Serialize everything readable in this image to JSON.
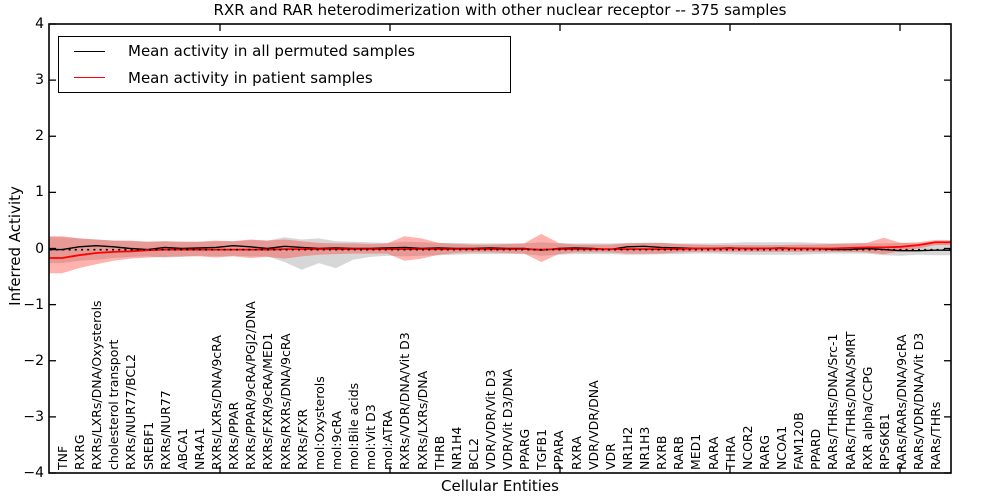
{
  "title": "RXR and RAR heterodimerization with other nuclear receptor -- 375 samples",
  "axes": {
    "ylabel": "Inferred Activity",
    "xlabel": "Cellular Entities",
    "y_tick_labels": [
      "4",
      "3",
      "2",
      "1",
      "0",
      "−1",
      "−2",
      "−3",
      "−4"
    ],
    "y_tick_values": [
      4,
      3,
      2,
      1,
      0,
      -1,
      -2,
      -3,
      -4
    ]
  },
  "legend": {
    "items": [
      {
        "label": "Mean activity in all permuted samples",
        "color": "#000000"
      },
      {
        "label": "Mean activity in patient samples",
        "color": "#ff0000"
      }
    ]
  },
  "chart_data": {
    "type": "line",
    "title": "RXR and RAR heterodimerization with other nuclear receptor -- 375 samples",
    "xlabel": "Cellular Entities",
    "ylabel": "Inferred Activity",
    "ylim": [
      -4,
      4
    ],
    "grid": false,
    "legend_position": "upper left",
    "categories": [
      "TNF",
      "RXRG",
      "RXRs/LXRs/DNA/Oxysterols",
      "cholesterol transport",
      "RXRs/NUR77/BCL2",
      "SREBF1",
      "RXRs/NUR77",
      "ABCA1",
      "NR4A1",
      "RXRs/LXRs/DNA/9cRA",
      "RXRs/PPAR",
      "RXRs/PPAR/9cRA/PGJ2/DNA",
      "RXRs/FXR/9cRA/MED1",
      "RXRs/RXRs/DNA/9cRA",
      "RXRs/FXR",
      "mol:Oxysterols",
      "mol:9cRA",
      "mol:Bile acids",
      "mol:Vit D3",
      "mol:ATRA",
      "RXRs/VDR/DNA/Vit D3",
      "RXRs/LXRs/DNA",
      "THRB",
      "NR1H4",
      "BCL2",
      "VDR/VDR/Vit D3",
      "VDR/Vit D3/DNA",
      "PPARG",
      "TGFB1",
      "PPARA",
      "RXRA",
      "VDR/VDR/DNA",
      "VDR",
      "NR1H2",
      "NR1H3",
      "RXRB",
      "RARB",
      "MED1",
      "RARA",
      "THRA",
      "NCOR2",
      "RARG",
      "NCOA1",
      "FAM120B",
      "PPARD",
      "RARs/THRs/DNA/Src-1",
      "RARs/THRs/DNA/SMRT",
      "RXR alpha/CCPG",
      "RPS6KB1",
      "RARs/RARs/DNA/9cRA",
      "RARs/VDR/DNA/Vit D3",
      "RARs/THRs"
    ],
    "series": [
      {
        "name": "Mean activity in all permuted samples",
        "color": "#000000",
        "style": "solid",
        "values": [
          -0.02,
          0.03,
          0.05,
          0.03,
          0.0,
          -0.02,
          0.02,
          0.0,
          0.01,
          0.02,
          0.05,
          0.03,
          0.0,
          0.04,
          0.02,
          0.0,
          0.01,
          0.0,
          0.0,
          0.01,
          0.02,
          0.0,
          0.01,
          0.0,
          0.0,
          0.01,
          0.0,
          0.0,
          -0.03,
          0.0,
          0.01,
          0.0,
          -0.02,
          0.03,
          0.04,
          0.02,
          0.01,
          0.0,
          0.0,
          0.01,
          0.0,
          0.0,
          0.01,
          0.0,
          0.0,
          -0.02,
          -0.02,
          0.0,
          -0.02,
          -0.04,
          -0.04,
          -0.03
        ]
      },
      {
        "name": "Mean activity in patient samples",
        "color": "#ff0000",
        "style": "solid",
        "values": [
          -0.17,
          -0.12,
          -0.08,
          -0.06,
          -0.05,
          -0.03,
          -0.02,
          -0.02,
          -0.02,
          -0.02,
          -0.02,
          -0.02,
          -0.02,
          -0.01,
          -0.01,
          -0.01,
          -0.01,
          -0.01,
          -0.01,
          -0.01,
          -0.01,
          -0.01,
          -0.01,
          -0.01,
          -0.01,
          -0.01,
          -0.01,
          -0.01,
          -0.02,
          -0.01,
          -0.01,
          -0.01,
          -0.01,
          -0.01,
          -0.01,
          -0.01,
          -0.01,
          0.0,
          0.0,
          0.0,
          0.0,
          0.0,
          0.0,
          0.0,
          0.0,
          0.0,
          0.01,
          0.02,
          0.02,
          0.03,
          0.06,
          0.11
        ]
      }
    ],
    "bands": [
      {
        "name": "permuted-samples-band",
        "color": "rgba(130,130,130,0.32)",
        "upper": [
          0.2,
          0.18,
          0.16,
          0.14,
          0.13,
          0.12,
          0.13,
          0.12,
          0.12,
          0.13,
          0.13,
          0.15,
          0.14,
          0.2,
          0.16,
          0.18,
          0.13,
          0.12,
          0.11,
          0.1,
          0.12,
          0.11,
          0.1,
          0.1,
          0.09,
          0.09,
          0.09,
          0.09,
          0.11,
          0.09,
          0.09,
          0.09,
          0.09,
          0.1,
          0.1,
          0.1,
          0.09,
          0.09,
          0.09,
          0.1,
          0.11,
          0.11,
          0.11,
          0.11,
          0.1,
          0.09,
          0.09,
          0.09,
          0.09,
          0.1,
          0.09,
          0.08
        ],
        "lower": [
          -0.26,
          -0.22,
          -0.2,
          -0.17,
          -0.15,
          -0.14,
          -0.16,
          -0.15,
          -0.13,
          -0.14,
          -0.13,
          -0.14,
          -0.14,
          -0.24,
          -0.38,
          -0.26,
          -0.35,
          -0.2,
          -0.15,
          -0.13,
          -0.14,
          -0.13,
          -0.12,
          -0.11,
          -0.1,
          -0.1,
          -0.1,
          -0.1,
          -0.13,
          -0.11,
          -0.1,
          -0.1,
          -0.1,
          -0.11,
          -0.11,
          -0.1,
          -0.1,
          -0.09,
          -0.09,
          -0.1,
          -0.11,
          -0.11,
          -0.11,
          -0.11,
          -0.1,
          -0.09,
          -0.09,
          -0.09,
          -0.12,
          -0.13,
          -0.11,
          -0.12
        ]
      },
      {
        "name": "patient-samples-band",
        "color": "rgba(255,45,35,0.37)",
        "upper": [
          0.22,
          0.18,
          0.16,
          0.14,
          0.14,
          0.12,
          0.13,
          0.12,
          0.12,
          0.14,
          0.13,
          0.16,
          0.14,
          0.16,
          0.13,
          0.1,
          0.09,
          0.09,
          0.08,
          0.09,
          0.22,
          0.18,
          0.1,
          0.08,
          0.07,
          0.07,
          0.08,
          0.09,
          0.26,
          0.1,
          0.07,
          0.07,
          0.07,
          0.09,
          0.1,
          0.1,
          0.08,
          0.07,
          0.06,
          0.06,
          0.06,
          0.06,
          0.06,
          0.07,
          0.07,
          0.08,
          0.09,
          0.1,
          0.19,
          0.1,
          0.11,
          0.15
        ],
        "lower": [
          -0.44,
          -0.35,
          -0.28,
          -0.22,
          -0.18,
          -0.16,
          -0.15,
          -0.14,
          -0.14,
          -0.16,
          -0.14,
          -0.17,
          -0.15,
          -0.18,
          -0.14,
          -0.11,
          -0.1,
          -0.09,
          -0.09,
          -0.09,
          -0.22,
          -0.18,
          -0.11,
          -0.08,
          -0.07,
          -0.07,
          -0.08,
          -0.09,
          -0.24,
          -0.1,
          -0.07,
          -0.07,
          -0.07,
          -0.09,
          -0.09,
          -0.09,
          -0.07,
          -0.06,
          -0.06,
          -0.06,
          -0.06,
          -0.06,
          -0.06,
          -0.06,
          -0.06,
          -0.06,
          -0.06,
          -0.07,
          -0.1,
          -0.05,
          0.0,
          0.06
        ]
      }
    ],
    "zero_line": {
      "value": 0,
      "style": "dotted",
      "color": "#000000"
    }
  }
}
